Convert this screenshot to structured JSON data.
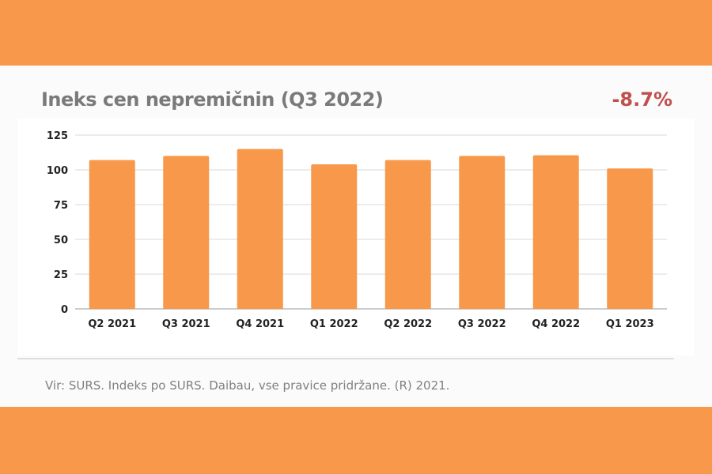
{
  "header": {
    "title": "Ineks cen nepremičnin (Q3 2022)",
    "change": "-8.7%"
  },
  "footer": {
    "source": "Vir: SURS. Indeks po SURS. Daibau, vse pravice pridržane. (R) 2021."
  },
  "colors": {
    "bar": "#f7984a",
    "background": "#f7984a",
    "change": "#c0504d"
  },
  "chart_data": {
    "type": "bar",
    "categories": [
      "Q2 2021",
      "Q3 2021",
      "Q4 2021",
      "Q1 2022",
      "Q2 2022",
      "Q3 2022",
      "Q4 2022",
      "Q1 2023"
    ],
    "values": [
      107,
      110,
      115,
      104,
      107,
      110,
      110.5,
      101
    ],
    "yticks": [
      0,
      25,
      50,
      75,
      100,
      125
    ],
    "ylim": [
      0,
      125
    ],
    "grid": true
  }
}
